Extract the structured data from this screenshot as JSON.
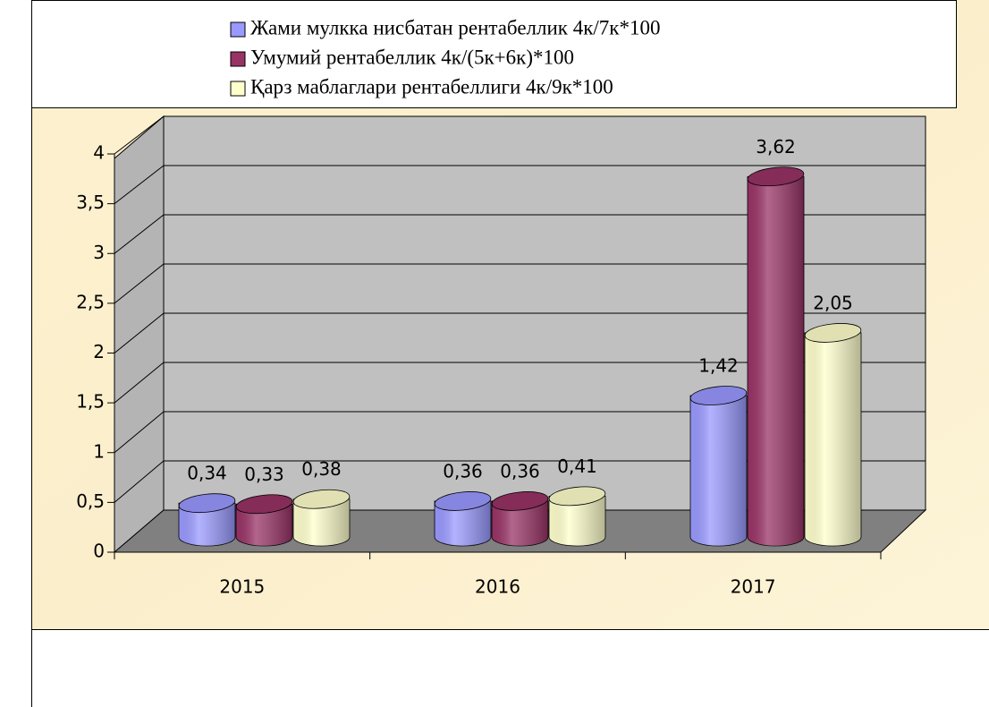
{
  "chart_data": {
    "type": "bar3d",
    "categories": [
      "2015",
      "2016",
      "2017"
    ],
    "series": [
      {
        "name": "Жами мулкка нисбатан рентабеллик 4к/7к*100",
        "color": "#9999ff",
        "values": [
          0.34,
          0.36,
          1.42
        ],
        "value_labels": [
          "0,34",
          "0,36",
          "1,42"
        ]
      },
      {
        "name": "Умумий рентабеллик 4к/(5к+6к)*100",
        "color": "#993366",
        "values": [
          0.33,
          0.36,
          3.62
        ],
        "value_labels": [
          "0,33",
          "0,36",
          "3,62"
        ]
      },
      {
        "name": "Қарз маблаглари рентабеллиги 4к/9к*100",
        "color": "#ffffcc",
        "values": [
          0.38,
          0.41,
          2.05
        ],
        "value_labels": [
          "0,38",
          "0,41",
          "2,05"
        ]
      }
    ],
    "ylim": [
      0,
      4
    ],
    "yticks": [
      0,
      {
        "value": 0.5,
        "label": "0,5"
      },
      1,
      {
        "value": 1.5,
        "label": "1,5"
      },
      2,
      {
        "value": 2.5,
        "label": "2,5"
      },
      3,
      {
        "value": 3.5,
        "label": "3,5"
      },
      4
    ],
    "grid": true,
    "legend": "top"
  }
}
